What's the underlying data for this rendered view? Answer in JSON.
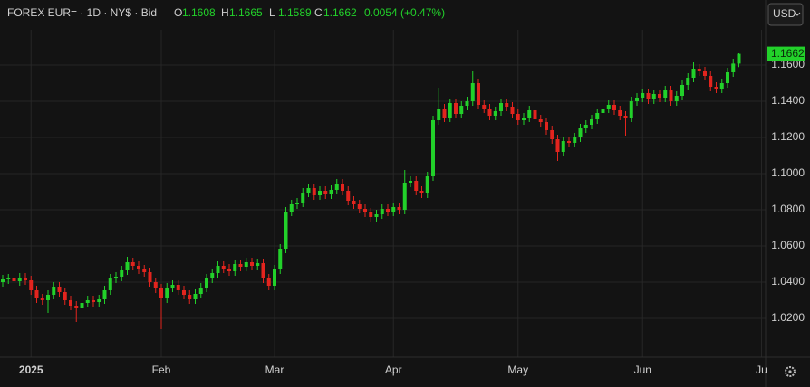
{
  "header": {
    "instrument": "FOREX EUR= · 1D · NY$ · Bid",
    "ohlc_labels": [
      "O",
      "H",
      "L",
      "C"
    ],
    "change": "0.0054 (+0.47%)",
    "currency": "USD"
  },
  "chart_data": {
    "type": "candlestick",
    "categories": [
      null,
      null,
      null,
      null,
      null,
      "2025",
      null,
      null,
      null,
      null,
      null,
      null,
      null,
      null,
      null,
      null,
      null,
      null,
      null,
      null,
      null,
      null,
      null,
      null,
      null,
      null,
      null,
      null,
      "Feb",
      null,
      null,
      null,
      null,
      null,
      null,
      null,
      null,
      null,
      null,
      null,
      null,
      null,
      null,
      null,
      null,
      null,
      null,
      null,
      "Mar",
      null,
      null,
      null,
      null,
      null,
      null,
      null,
      null,
      null,
      null,
      null,
      null,
      null,
      null,
      null,
      null,
      null,
      null,
      null,
      null,
      "Apr",
      null,
      null,
      null,
      null,
      null,
      null,
      null,
      null,
      null,
      null,
      null,
      null,
      null,
      null,
      null,
      null,
      null,
      null,
      null,
      null,
      null,
      "May",
      null,
      null,
      null,
      null,
      null,
      null,
      null,
      null,
      null,
      null,
      null,
      null,
      null,
      null,
      null,
      null,
      null,
      null,
      null,
      null,
      null,
      "Jun",
      null,
      null,
      null,
      null,
      null,
      null,
      null,
      null,
      null,
      null,
      null,
      null,
      null,
      null,
      null,
      null,
      null,
      null,
      null,
      null,
      "Ju"
    ],
    "open": [
      1.04,
      1.0415,
      1.042,
      1.0405,
      1.0425,
      1.041,
      1.0355,
      1.031,
      1.03,
      1.033,
      1.0375,
      1.0345,
      1.03,
      1.027,
      1.0255,
      1.0285,
      1.03,
      1.029,
      1.0305,
      1.0355,
      1.042,
      1.043,
      1.0465,
      1.051,
      1.049,
      1.047,
      1.0455,
      1.04,
      1.0365,
      1.031,
      1.037,
      1.0385,
      1.0355,
      1.033,
      1.0305,
      1.0335,
      1.037,
      1.042,
      1.045,
      1.049,
      1.0475,
      1.046,
      1.05,
      1.0485,
      1.051,
      1.049,
      1.0505,
      1.042,
      1.038,
      1.047,
      1.0585,
      1.079,
      1.083,
      1.084,
      1.0895,
      1.092,
      1.088,
      1.0905,
      1.0885,
      1.091,
      1.0945,
      1.0905,
      1.085,
      1.083,
      1.0805,
      1.0785,
      1.076,
      1.0775,
      1.0805,
      1.079,
      1.0815,
      1.08,
      1.095,
      1.096,
      1.0905,
      1.089,
      1.0985,
      1.1295,
      1.136,
      1.131,
      1.139,
      1.133,
      1.1375,
      1.14,
      1.15,
      1.138,
      1.136,
      1.132,
      1.1345,
      1.139,
      1.137,
      1.133,
      1.1295,
      1.131,
      1.135,
      1.13,
      1.1285,
      1.124,
      1.119,
      1.112,
      1.118,
      1.117,
      1.12,
      1.125,
      1.127,
      1.13,
      1.1335,
      1.136,
      1.138,
      1.135,
      1.132,
      1.131,
      1.14,
      1.142,
      1.1445,
      1.141,
      1.144,
      1.142,
      1.146,
      1.14,
      1.143,
      1.149,
      1.153,
      1.158,
      1.1565,
      1.154,
      1.148,
      1.147,
      1.15,
      1.156,
      1.1608,
      null,
      null,
      null,
      null
    ],
    "high": [
      1.044,
      1.0445,
      1.0445,
      1.045,
      1.045,
      1.0435,
      1.038,
      1.0335,
      1.0355,
      1.04,
      1.04,
      1.037,
      1.0325,
      1.0295,
      1.031,
      1.0325,
      1.0325,
      1.033,
      1.038,
      1.0445,
      1.0455,
      1.049,
      1.054,
      1.0535,
      1.0515,
      1.0495,
      1.048,
      1.0425,
      1.039,
      1.0395,
      1.041,
      1.041,
      1.038,
      1.0355,
      1.036,
      1.0395,
      1.0445,
      1.0475,
      1.0515,
      1.0515,
      1.05,
      1.0525,
      1.0525,
      1.0535,
      1.0535,
      1.053,
      1.053,
      1.0445,
      1.0495,
      1.061,
      1.0815,
      1.0855,
      1.0865,
      1.092,
      1.0945,
      1.0945,
      1.093,
      1.093,
      1.0935,
      1.097,
      1.097,
      1.093,
      1.0875,
      1.0855,
      1.083,
      1.081,
      1.08,
      1.083,
      1.083,
      1.084,
      1.084,
      1.102,
      1.0985,
      1.0985,
      1.093,
      1.101,
      1.132,
      1.1475,
      1.1385,
      1.1415,
      1.1415,
      1.14,
      1.1425,
      1.1565,
      1.1525,
      1.1405,
      1.1385,
      1.137,
      1.1415,
      1.1415,
      1.1395,
      1.1355,
      1.1335,
      1.1375,
      1.1375,
      1.1325,
      1.131,
      1.1265,
      1.1215,
      1.1205,
      1.1205,
      1.1225,
      1.1275,
      1.1295,
      1.1325,
      1.136,
      1.1385,
      1.1405,
      1.1405,
      1.1375,
      1.1345,
      1.1425,
      1.1445,
      1.147,
      1.147,
      1.1465,
      1.1465,
      1.1485,
      1.1485,
      1.1455,
      1.1515,
      1.1555,
      1.1615,
      1.1605,
      1.159,
      1.1565,
      1.1505,
      1.1525,
      1.1585,
      1.1635,
      1.1665,
      null,
      null,
      null,
      null
    ],
    "low": [
      1.0375,
      1.039,
      1.038,
      1.038,
      1.0385,
      1.033,
      1.0285,
      1.0275,
      1.023,
      1.0305,
      1.032,
      1.0275,
      1.0245,
      1.018,
      1.023,
      1.026,
      1.0265,
      1.0265,
      1.028,
      1.033,
      1.0395,
      1.0405,
      1.044,
      1.0465,
      1.0445,
      1.043,
      1.0375,
      1.034,
      1.014,
      1.0285,
      1.0345,
      1.033,
      1.0305,
      1.028,
      1.028,
      1.031,
      1.0345,
      1.0395,
      1.0425,
      1.045,
      1.0435,
      1.0435,
      1.046,
      1.046,
      1.0465,
      1.0465,
      1.0395,
      1.0355,
      1.0355,
      1.0445,
      1.056,
      1.0765,
      1.0805,
      1.0815,
      1.087,
      1.0855,
      1.0855,
      1.086,
      1.086,
      1.0885,
      1.088,
      1.0825,
      1.0805,
      1.078,
      1.076,
      1.0735,
      1.0735,
      1.075,
      1.0765,
      1.0765,
      1.0775,
      1.0775,
      1.0925,
      1.088,
      1.0865,
      1.0865,
      1.096,
      1.127,
      1.1285,
      1.1285,
      1.1305,
      1.1305,
      1.135,
      1.1375,
      1.1355,
      1.1335,
      1.1295,
      1.1295,
      1.132,
      1.1345,
      1.1305,
      1.127,
      1.127,
      1.1285,
      1.1275,
      1.126,
      1.1215,
      1.1165,
      1.107,
      1.1095,
      1.1145,
      1.1145,
      1.1175,
      1.1225,
      1.1245,
      1.1275,
      1.131,
      1.1335,
      1.1325,
      1.1295,
      1.121,
      1.1285,
      1.1375,
      1.1395,
      1.1385,
      1.1385,
      1.1395,
      1.1395,
      1.1375,
      1.1375,
      1.1405,
      1.1465,
      1.1505,
      1.154,
      1.1515,
      1.1455,
      1.1445,
      1.1445,
      1.1475,
      1.1535,
      1.1589,
      null,
      null,
      null,
      null
    ],
    "close": [
      1.0415,
      1.042,
      1.0405,
      1.0425,
      1.041,
      1.0355,
      1.031,
      1.03,
      1.033,
      1.0375,
      1.0345,
      1.03,
      1.027,
      1.0255,
      1.0285,
      1.03,
      1.029,
      1.0305,
      1.0355,
      1.042,
      1.043,
      1.0465,
      1.051,
      1.049,
      1.047,
      1.0455,
      1.04,
      1.0365,
      1.031,
      1.037,
      1.0385,
      1.0355,
      1.033,
      1.0305,
      1.0335,
      1.037,
      1.042,
      1.045,
      1.049,
      1.0475,
      1.046,
      1.05,
      1.0485,
      1.051,
      1.049,
      1.0505,
      1.042,
      1.038,
      1.047,
      1.0585,
      1.079,
      1.083,
      1.084,
      1.0895,
      1.092,
      1.088,
      1.0905,
      1.0885,
      1.091,
      1.0945,
      1.0905,
      1.085,
      1.083,
      1.0805,
      1.0785,
      1.076,
      1.0775,
      1.0805,
      1.079,
      1.0815,
      1.08,
      1.095,
      1.096,
      1.0905,
      1.089,
      1.0985,
      1.1295,
      1.136,
      1.131,
      1.139,
      1.133,
      1.1375,
      1.14,
      1.15,
      1.138,
      1.136,
      1.132,
      1.1345,
      1.139,
      1.137,
      1.133,
      1.1295,
      1.131,
      1.135,
      1.13,
      1.1285,
      1.124,
      1.119,
      1.112,
      1.118,
      1.117,
      1.12,
      1.125,
      1.127,
      1.13,
      1.1335,
      1.136,
      1.138,
      1.135,
      1.132,
      1.131,
      1.14,
      1.142,
      1.1445,
      1.141,
      1.144,
      1.142,
      1.146,
      1.14,
      1.143,
      1.149,
      1.153,
      1.158,
      1.1565,
      1.154,
      1.148,
      1.147,
      1.15,
      1.156,
      1.1608,
      1.1662,
      null,
      null,
      null,
      null
    ],
    "up_color": "#22d12a",
    "down_color": "#e3241e",
    "ylim": [
      0.9985,
      1.1795
    ],
    "yticks": [
      {
        "value": 1.02,
        "label": "1.0200"
      },
      {
        "value": 1.04,
        "label": "1.0400"
      },
      {
        "value": 1.06,
        "label": "1.0600"
      },
      {
        "value": 1.08,
        "label": "1.0800"
      },
      {
        "value": 1.1,
        "label": "1.1000"
      },
      {
        "value": 1.12,
        "label": "1.1200"
      },
      {
        "value": 1.14,
        "label": "1.1400"
      },
      {
        "value": 1.16,
        "label": "1.1600"
      }
    ],
    "grid": true
  }
}
